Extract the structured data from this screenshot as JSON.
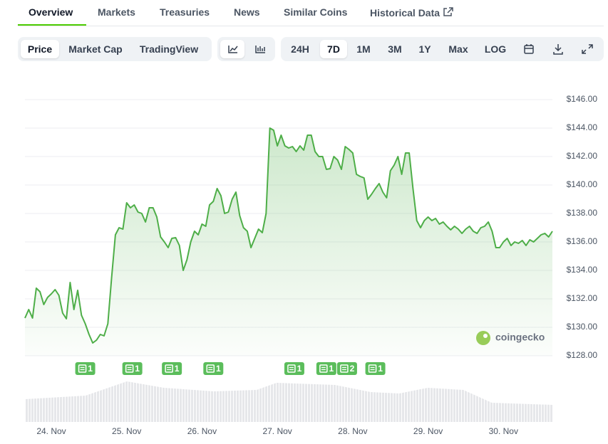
{
  "tabs": {
    "items": [
      "Overview",
      "Markets",
      "Treasuries",
      "News",
      "Similar Coins",
      "Historical Data"
    ],
    "active": 0
  },
  "toolbar": {
    "modes": [
      "Price",
      "Market Cap",
      "TradingView"
    ],
    "active_mode": 0,
    "ranges": [
      "24H",
      "7D",
      "1M",
      "3M",
      "1Y",
      "Max",
      "LOG"
    ],
    "active_range": 1
  },
  "chart_data": {
    "type": "line",
    "color": "#4eae48",
    "values": [
      130.65,
      131.25,
      130.65,
      132.75,
      132.5,
      131.6,
      132.1,
      132.35,
      132.65,
      132.25,
      131.0,
      130.6,
      133.15,
      131.25,
      132.6,
      130.85,
      130.25,
      129.5,
      128.9,
      129.1,
      129.5,
      129.4,
      130.25,
      133.5,
      136.5,
      137.0,
      136.9,
      138.75,
      138.4,
      138.6,
      138.1,
      138.0,
      137.4,
      138.4,
      138.4,
      137.75,
      136.35,
      136.0,
      135.6,
      136.25,
      136.3,
      135.75,
      134.0,
      134.75,
      136.0,
      136.75,
      136.5,
      137.25,
      137.1,
      138.6,
      138.85,
      139.75,
      139.25,
      138.0,
      138.1,
      139.0,
      139.5,
      137.85,
      137.0,
      136.75,
      135.6,
      136.25,
      136.9,
      136.65,
      138.0,
      144.0,
      143.85,
      142.75,
      143.5,
      142.75,
      142.6,
      142.7,
      142.35,
      142.75,
      142.45,
      143.5,
      143.5,
      142.35,
      142.0,
      142.0,
      141.1,
      141.15,
      142.0,
      141.75,
      141.1,
      142.7,
      142.5,
      142.25,
      140.75,
      140.6,
      140.5,
      139.0,
      139.35,
      139.75,
      140.1,
      139.5,
      139.1,
      141.0,
      141.4,
      142.0,
      140.75,
      142.25,
      142.25,
      139.75,
      137.5,
      137.0,
      137.5,
      137.75,
      137.5,
      137.65,
      137.25,
      137.4,
      137.1,
      136.85,
      137.1,
      136.9,
      136.6,
      136.9,
      137.1,
      136.75,
      136.6,
      137.0,
      137.1,
      137.4,
      136.75,
      135.6,
      135.6,
      136.0,
      136.25,
      135.75,
      136.0,
      135.9,
      136.1,
      135.75,
      136.15,
      136.0,
      136.25,
      136.5,
      136.6,
      136.35,
      136.75
    ],
    "xlim": [
      0,
      140
    ],
    "xticks": [
      {
        "value": 7,
        "label": "24. Nov"
      },
      {
        "value": 27,
        "label": "25. Nov"
      },
      {
        "value": 47,
        "label": "26. Nov"
      },
      {
        "value": 67,
        "label": "27. Nov"
      },
      {
        "value": 87,
        "label": "28. Nov"
      },
      {
        "value": 107,
        "label": "29. Nov"
      },
      {
        "value": 127,
        "label": "30. Nov"
      }
    ],
    "ylim": [
      128,
      146
    ],
    "yticks": [
      {
        "value": 128,
        "label": "$128.00"
      },
      {
        "value": 130,
        "label": "$130.00"
      },
      {
        "value": 132,
        "label": "$132.00"
      },
      {
        "value": 134,
        "label": "$134.00"
      },
      {
        "value": 136,
        "label": "$136.00"
      },
      {
        "value": 138,
        "label": "$138.00"
      },
      {
        "value": 140,
        "label": "$140.00"
      },
      {
        "value": 142,
        "label": "$142.00"
      },
      {
        "value": 144,
        "label": "$144.00"
      },
      {
        "value": 146,
        "label": "$146.00"
      }
    ],
    "grid": true,
    "news": [
      {
        "x": 16,
        "count": 1
      },
      {
        "x": 28.5,
        "count": 1
      },
      {
        "x": 39,
        "count": 1
      },
      {
        "x": 50,
        "count": 1
      },
      {
        "x": 71.5,
        "count": 1
      },
      {
        "x": 80,
        "count": 1
      },
      {
        "x": 85.5,
        "count": 2
      },
      {
        "x": 93,
        "count": 1
      }
    ],
    "watermark": "coingecko"
  }
}
